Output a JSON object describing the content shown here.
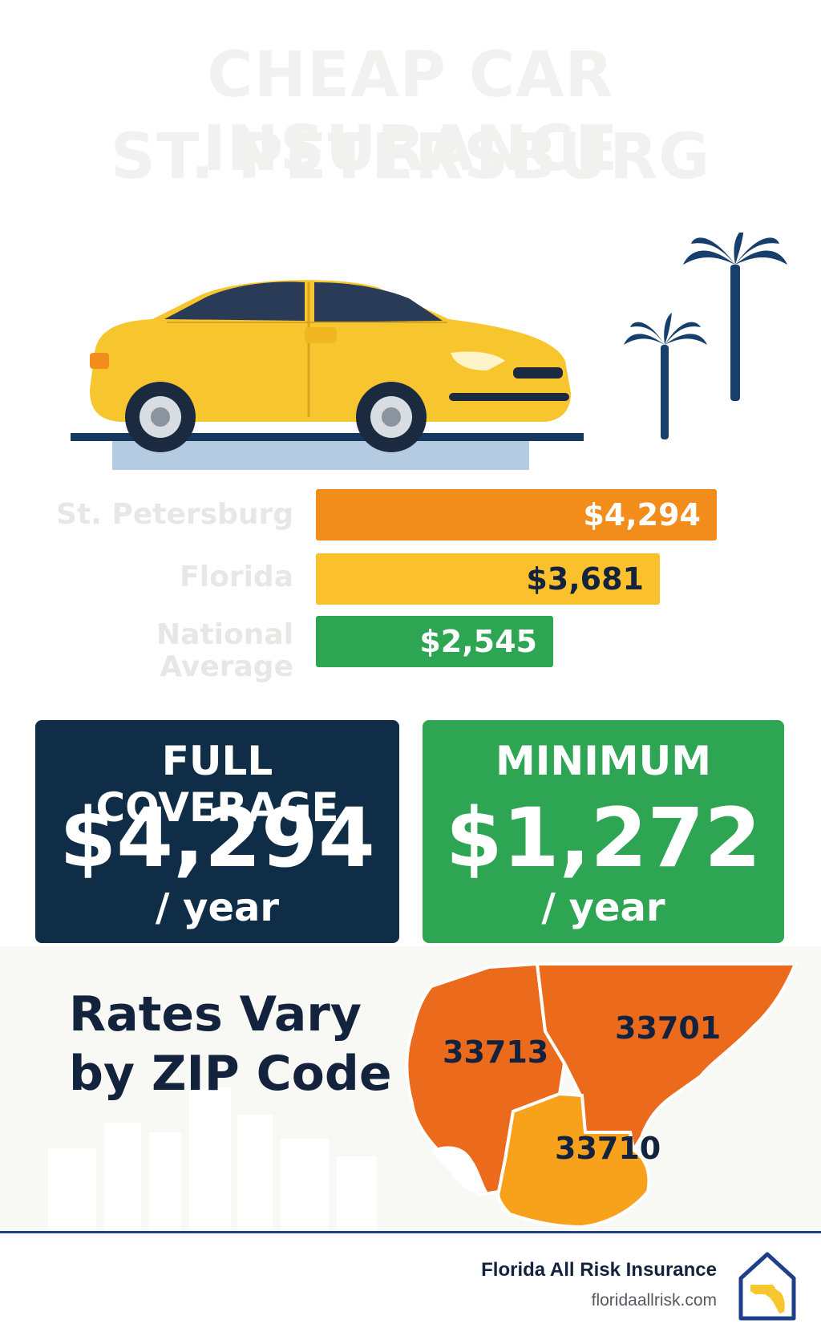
{
  "title": {
    "line1": "CHEAP CAR INSURANCE",
    "line2": "ST. PETERSBURG"
  },
  "comparison": {
    "rows": [
      {
        "label": "St. Petersburg",
        "value": "$4,294",
        "amount": 4294,
        "color": "#f28c1b",
        "text_color": "#ffffff"
      },
      {
        "label": "Florida",
        "value": "$3,681",
        "amount": 3681,
        "color": "#fbc12d",
        "text_color": "#13233e"
      },
      {
        "label": "National Average",
        "value": "$2,545",
        "amount": 2545,
        "color": "#2ea553",
        "text_color": "#ffffff"
      }
    ]
  },
  "cards": {
    "full": {
      "heading": "FULL COVERAGE",
      "amount": "$4,294",
      "unit": "/ year",
      "color": "#0f2d46"
    },
    "minimum": {
      "heading": "MINIMUM",
      "amount": "$1,272",
      "unit": "/ year",
      "color": "#2ea553"
    }
  },
  "zip_section": {
    "heading_line1": "Rates Vary",
    "heading_line2": "by ZIP Code",
    "zips": [
      "33713",
      "33701",
      "33710"
    ]
  },
  "footer": {
    "brand": "Florida All Risk Insurance",
    "url": "floridaallrisk.com"
  },
  "colors": {
    "navy": "#13233e",
    "car_yellow": "#f7c62f",
    "palm": "#173f6b",
    "map_orange": "#ec6a1c",
    "map_amber": "#f7a21a"
  }
}
